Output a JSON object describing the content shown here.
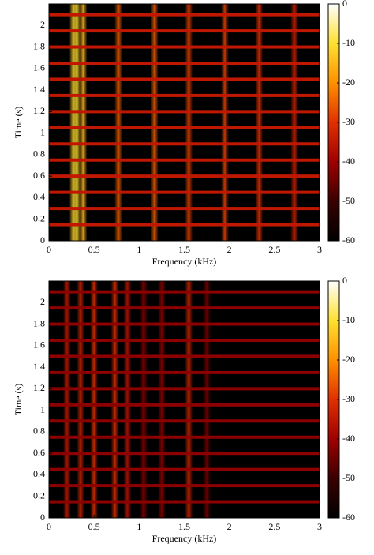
{
  "chart_data": [
    {
      "type": "heatmap",
      "xlabel": "Frequency (kHz)",
      "ylabel": "Time (s)",
      "xlim": [
        0,
        3
      ],
      "ylim": [
        0,
        2.2
      ],
      "xticks": [
        0,
        0.5,
        1,
        1.5,
        2,
        2.5,
        3
      ],
      "yticks": [
        0,
        0.2,
        0.4,
        0.6,
        0.8,
        1,
        1.2,
        1.4,
        1.6,
        1.8,
        2
      ],
      "clim": [
        -60,
        0
      ],
      "cticks": [
        0,
        -10,
        -20,
        -30,
        -40,
        -50,
        -60
      ],
      "colorscale": [
        "#000000",
        "#3a0000",
        "#a00000",
        "#e03000",
        "#ff9000",
        "#ffe030",
        "#ffffff"
      ],
      "row_level": -35,
      "rows": [
        0.15,
        0.3,
        0.45,
        0.6,
        0.75,
        0.9,
        1.05,
        1.2,
        1.35,
        1.5,
        1.65,
        1.8,
        1.95,
        2.1
      ],
      "peaks": [
        {
          "freq": 0.27,
          "level": -12
        },
        {
          "freq": 0.31,
          "level": -10
        },
        {
          "freq": 0.38,
          "level": -15
        },
        {
          "freq": 0.77,
          "level": -25
        },
        {
          "freq": 1.17,
          "level": -25
        },
        {
          "freq": 1.55,
          "level": -28
        },
        {
          "freq": 1.95,
          "level": -28
        },
        {
          "freq": 2.33,
          "level": -30
        },
        {
          "freq": 2.72,
          "level": -32
        }
      ]
    },
    {
      "type": "heatmap",
      "xlabel": "Frequency (kHz)",
      "ylabel": "Time (s)",
      "xlim": [
        0,
        3
      ],
      "ylim": [
        0,
        2.2
      ],
      "xticks": [
        0,
        0.5,
        1,
        1.5,
        2,
        2.5,
        3
      ],
      "yticks": [
        0,
        0.2,
        0.4,
        0.6,
        0.8,
        1,
        1.2,
        1.4,
        1.6,
        1.8,
        2
      ],
      "clim": [
        -60,
        0
      ],
      "cticks": [
        0,
        -10,
        -20,
        -30,
        -40,
        -50,
        -60
      ],
      "colorscale": [
        "#000000",
        "#3a0000",
        "#a00000",
        "#e03000",
        "#ff9000",
        "#ffe030",
        "#ffffff"
      ],
      "row_level": -42,
      "rows": [
        0.15,
        0.3,
        0.45,
        0.6,
        0.75,
        0.9,
        1.05,
        1.2,
        1.35,
        1.5,
        1.65,
        1.8,
        1.95,
        2.1
      ],
      "peaks": [
        {
          "freq": 0.2,
          "level": -35
        },
        {
          "freq": 0.35,
          "level": -33
        },
        {
          "freq": 0.5,
          "level": -30
        },
        {
          "freq": 0.73,
          "level": -30
        },
        {
          "freq": 0.87,
          "level": -36
        },
        {
          "freq": 1.05,
          "level": -42
        },
        {
          "freq": 1.25,
          "level": -42
        },
        {
          "freq": 1.55,
          "level": -32
        },
        {
          "freq": 1.75,
          "level": -44
        }
      ]
    }
  ]
}
